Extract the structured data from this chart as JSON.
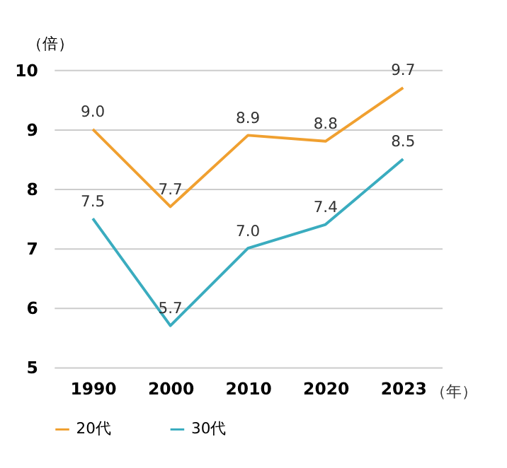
{
  "chart_data": {
    "type": "line",
    "ylabel": "（倍）",
    "xlabel": "（年）",
    "categories": [
      "1990",
      "2000",
      "2010",
      "2020",
      "2023"
    ],
    "series": [
      {
        "name": "20代",
        "color": "#f0a030",
        "values": [
          9.0,
          7.7,
          8.9,
          8.8,
          9.7
        ],
        "value_labels": [
          "9.0",
          "7.7",
          "8.9",
          "8.8",
          "9.7"
        ]
      },
      {
        "name": "30代",
        "color": "#3aacbf",
        "values": [
          7.5,
          5.7,
          7.0,
          7.4,
          8.5
        ],
        "value_labels": [
          "7.5",
          "5.7",
          "7.0",
          "7.4",
          "8.5"
        ]
      }
    ],
    "ylim": [
      5,
      10
    ],
    "yticks": [
      5,
      6,
      7,
      8,
      9,
      10
    ],
    "grid": "y",
    "legend": "bottom",
    "marker": "none",
    "line_style": "solid"
  }
}
